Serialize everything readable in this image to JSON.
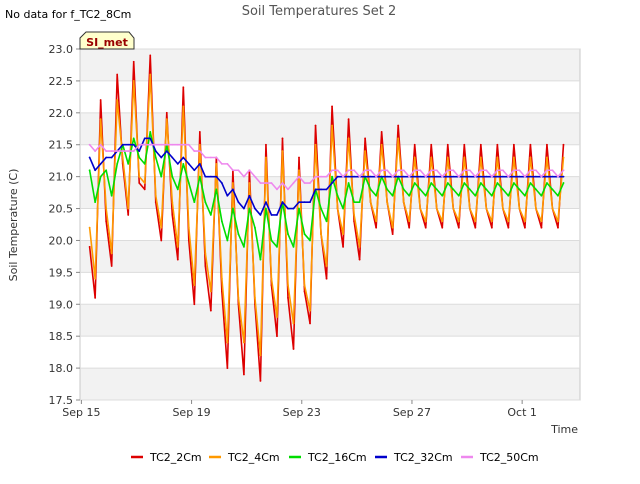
{
  "header": {
    "title": "Soil Temperatures Set 2",
    "no_data_note": "No data for f_TC2_8Cm"
  },
  "site_badge": "SI_met",
  "chart_data": {
    "type": "line",
    "title": "Soil Temperatures Set 2",
    "xlabel": "Time",
    "ylabel": "Soil Temperature (C)",
    "ylim": [
      17.5,
      23.0
    ],
    "xlim_days": [
      -0.05,
      18.1
    ],
    "x_ticks": [
      {
        "label": "Sep 15",
        "day": 0
      },
      {
        "label": "Sep 19",
        "day": 4
      },
      {
        "label": "Sep 23",
        "day": 8
      },
      {
        "label": "Sep 27",
        "day": 12
      },
      {
        "label": "Oct 1",
        "day": 16
      }
    ],
    "y_ticks": [
      "17.5",
      "18.0",
      "18.5",
      "19.0",
      "19.5",
      "20.0",
      "20.5",
      "21.0",
      "21.5",
      "22.0",
      "22.5",
      "23.0"
    ],
    "grid": "horizontal bands",
    "legend_position": "bottom",
    "x_unit": "days since Sep 15 00:00",
    "day_offsets": [
      0.3,
      0.5,
      0.7,
      0.9,
      1.1,
      1.3,
      1.5,
      1.7,
      1.9,
      2.1,
      2.3,
      2.5,
      2.7,
      2.9,
      3.1,
      3.3,
      3.5,
      3.7,
      3.9,
      4.1,
      4.3,
      4.5,
      4.7,
      4.9,
      5.1,
      5.3,
      5.5,
      5.7,
      5.9,
      6.1,
      6.3,
      6.5,
      6.7,
      6.9,
      7.1,
      7.3,
      7.5,
      7.7,
      7.9,
      8.1,
      8.3,
      8.5,
      8.7,
      8.9,
      9.1,
      9.3,
      9.5,
      9.7,
      9.9,
      10.1,
      10.3,
      10.5,
      10.7,
      10.9,
      11.1,
      11.3,
      11.5,
      11.7,
      11.9,
      12.1,
      12.3,
      12.5,
      12.7,
      12.9,
      13.1,
      13.3,
      13.5,
      13.7,
      13.9,
      14.1,
      14.3,
      14.5,
      14.7,
      14.9,
      15.1,
      15.3,
      15.5,
      15.7,
      15.9,
      16.1,
      16.3,
      16.5,
      16.7,
      16.9,
      17.1,
      17.3,
      17.5
    ],
    "series": [
      {
        "name": "TC2_2Cm",
        "color": "#dd0000",
        "values": [
          19.9,
          19.1,
          22.2,
          20.3,
          19.6,
          22.6,
          21.2,
          20.4,
          22.8,
          20.9,
          20.8,
          22.9,
          20.6,
          20.0,
          22.0,
          20.4,
          19.7,
          22.4,
          20.0,
          19.0,
          21.7,
          19.6,
          18.9,
          21.3,
          19.2,
          18.0,
          21.1,
          19.0,
          17.9,
          21.1,
          19.0,
          17.8,
          21.5,
          19.3,
          18.5,
          21.6,
          19.1,
          18.3,
          21.3,
          19.2,
          18.7,
          21.8,
          20.1,
          19.4,
          22.1,
          20.5,
          19.9,
          21.9,
          20.3,
          19.7,
          21.6,
          20.6,
          20.2,
          21.7,
          20.6,
          20.1,
          21.8,
          20.6,
          20.2,
          21.5,
          20.5,
          20.2,
          21.5,
          20.5,
          20.2,
          21.5,
          20.5,
          20.2,
          21.5,
          20.5,
          20.2,
          21.5,
          20.5,
          20.2,
          21.5,
          20.5,
          20.2,
          21.5,
          20.5,
          20.2,
          21.5,
          20.5,
          20.2,
          21.5,
          20.5,
          20.2,
          21.5
        ]
      },
      {
        "name": "TC2_4Cm",
        "color": "#ff9900",
        "values": [
          20.2,
          19.4,
          21.9,
          20.5,
          19.8,
          22.2,
          21.3,
          20.5,
          22.5,
          21.0,
          20.9,
          22.6,
          20.7,
          20.2,
          21.9,
          20.6,
          19.9,
          22.1,
          20.2,
          19.3,
          21.5,
          19.8,
          19.2,
          21.2,
          19.4,
          18.4,
          20.9,
          19.1,
          18.4,
          20.9,
          19.1,
          18.2,
          21.3,
          19.4,
          18.8,
          21.4,
          19.3,
          18.7,
          21.1,
          19.3,
          18.9,
          21.5,
          20.1,
          19.6,
          21.8,
          20.5,
          20.1,
          21.6,
          20.4,
          19.9,
          21.4,
          20.6,
          20.3,
          21.5,
          20.6,
          20.2,
          21.6,
          20.6,
          20.3,
          21.3,
          20.5,
          20.3,
          21.3,
          20.5,
          20.3,
          21.3,
          20.5,
          20.3,
          21.3,
          20.5,
          20.3,
          21.3,
          20.5,
          20.3,
          21.3,
          20.5,
          20.3,
          21.3,
          20.5,
          20.3,
          21.3,
          20.5,
          20.3,
          21.3,
          20.5,
          20.3,
          21.3
        ]
      },
      {
        "name": "TC2_16Cm",
        "color": "#00dd00",
        "values": [
          21.1,
          20.6,
          21.0,
          21.1,
          20.7,
          21.2,
          21.5,
          21.2,
          21.6,
          21.3,
          21.2,
          21.7,
          21.3,
          21.0,
          21.5,
          21.0,
          20.8,
          21.2,
          20.9,
          20.6,
          21.0,
          20.6,
          20.4,
          20.8,
          20.3,
          20.0,
          20.5,
          20.1,
          19.9,
          20.5,
          20.2,
          19.7,
          20.5,
          20.0,
          19.9,
          20.6,
          20.1,
          19.9,
          20.5,
          20.1,
          20.0,
          20.8,
          20.5,
          20.3,
          21.0,
          20.7,
          20.5,
          20.9,
          20.6,
          20.6,
          21.0,
          20.8,
          20.7,
          21.0,
          20.8,
          20.7,
          21.0,
          20.8,
          20.7,
          20.9,
          20.8,
          20.7,
          20.9,
          20.8,
          20.7,
          20.9,
          20.8,
          20.7,
          20.9,
          20.8,
          20.7,
          20.9,
          20.8,
          20.7,
          20.9,
          20.8,
          20.7,
          20.9,
          20.8,
          20.7,
          20.9,
          20.8,
          20.7,
          20.9,
          20.8,
          20.7,
          20.9
        ]
      },
      {
        "name": "TC2_32Cm",
        "color": "#0000cc",
        "values": [
          21.3,
          21.1,
          21.2,
          21.3,
          21.3,
          21.4,
          21.5,
          21.5,
          21.5,
          21.4,
          21.6,
          21.6,
          21.4,
          21.3,
          21.4,
          21.3,
          21.2,
          21.3,
          21.2,
          21.1,
          21.2,
          21.0,
          21.0,
          21.0,
          20.9,
          20.7,
          20.8,
          20.6,
          20.5,
          20.7,
          20.5,
          20.4,
          20.6,
          20.4,
          20.4,
          20.6,
          20.5,
          20.5,
          20.6,
          20.6,
          20.6,
          20.8,
          20.8,
          20.8,
          20.9,
          21.0,
          21.0,
          21.0,
          21.0,
          21.0,
          21.0,
          21.0,
          21.0,
          21.0,
          21.0,
          21.0,
          21.0,
          21.0,
          21.0,
          21.0,
          21.0,
          21.0,
          21.0,
          21.0,
          21.0,
          21.0,
          21.0,
          21.0,
          21.0,
          21.0,
          21.0,
          21.0,
          21.0,
          21.0,
          21.0,
          21.0,
          21.0,
          21.0,
          21.0,
          21.0,
          21.0,
          21.0,
          21.0,
          21.0,
          21.0,
          21.0,
          21.0
        ]
      },
      {
        "name": "TC2_50Cm",
        "color": "#ee88ee",
        "values": [
          21.5,
          21.4,
          21.5,
          21.4,
          21.4,
          21.4,
          21.4,
          21.4,
          21.4,
          21.5,
          21.5,
          21.5,
          21.5,
          21.5,
          21.5,
          21.5,
          21.5,
          21.5,
          21.5,
          21.4,
          21.4,
          21.3,
          21.3,
          21.3,
          21.2,
          21.2,
          21.1,
          21.1,
          21.0,
          21.1,
          21.0,
          20.9,
          20.9,
          20.9,
          20.8,
          20.9,
          20.8,
          20.9,
          21.0,
          20.9,
          20.9,
          21.0,
          21.0,
          21.0,
          21.1,
          21.1,
          21.0,
          21.1,
          21.1,
          21.0,
          21.1,
          21.1,
          21.0,
          21.1,
          21.1,
          21.0,
          21.1,
          21.1,
          21.0,
          21.1,
          21.1,
          21.0,
          21.1,
          21.1,
          21.0,
          21.1,
          21.1,
          21.0,
          21.1,
          21.1,
          21.0,
          21.1,
          21.1,
          21.0,
          21.1,
          21.1,
          21.0,
          21.1,
          21.1,
          21.0,
          21.1,
          21.1,
          21.0,
          21.1,
          21.1,
          21.0,
          21.1
        ]
      }
    ]
  }
}
